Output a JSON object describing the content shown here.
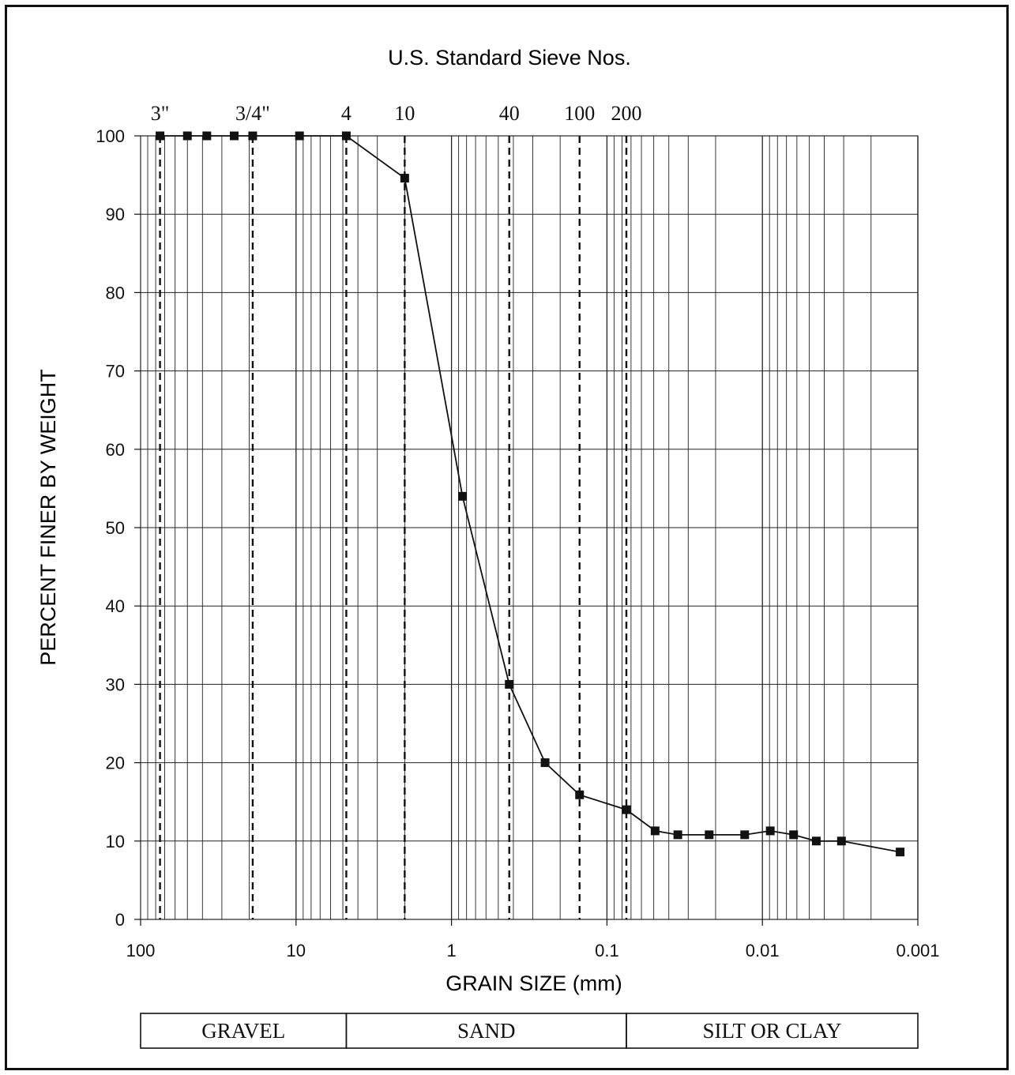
{
  "chart_data": {
    "type": "line",
    "title": "U.S. Standard Sieve Nos.",
    "xlabel": "GRAIN SIZE (mm)",
    "ylabel": "PERCENT FINER BY WEIGHT",
    "x_scale": "log",
    "x_reversed": true,
    "xlim": [
      100,
      0.001
    ],
    "ylim": [
      0,
      100
    ],
    "x_ticks": [
      {
        "value": 100,
        "label": "100"
      },
      {
        "value": 10,
        "label": "10"
      },
      {
        "value": 1,
        "label": "1"
      },
      {
        "value": 0.1,
        "label": "0.1"
      },
      {
        "value": 0.01,
        "label": "0.01"
      },
      {
        "value": 0.001,
        "label": "0.001"
      }
    ],
    "y_ticks": [
      0,
      10,
      20,
      30,
      40,
      50,
      60,
      70,
      80,
      90,
      100
    ],
    "grid": true,
    "sieves": [
      {
        "label": "3\"",
        "size_mm": 75
      },
      {
        "label": "3/4\"",
        "size_mm": 19
      },
      {
        "label": "4",
        "size_mm": 4.75
      },
      {
        "label": "10",
        "size_mm": 2.0
      },
      {
        "label": "40",
        "size_mm": 0.425
      },
      {
        "label": "100",
        "size_mm": 0.15
      },
      {
        "label": "200",
        "size_mm": 0.075
      }
    ],
    "series": [
      {
        "x": [
          75,
          50,
          37.5,
          25,
          19,
          9.5,
          4.75,
          2.0,
          0.85,
          0.425,
          0.25,
          0.15,
          0.075,
          0.049,
          0.035,
          0.022,
          0.013,
          0.0089,
          0.0063,
          0.0045,
          0.0031,
          0.0013
        ],
        "y": [
          100,
          100,
          100,
          100,
          100,
          100,
          100,
          94.6,
          54,
          30,
          20,
          15.9,
          14,
          11.3,
          10.8,
          10.8,
          10.8,
          11.3,
          10.8,
          10,
          10,
          8.6
        ]
      }
    ],
    "soil_classes": [
      {
        "label": "GRAVEL",
        "from_mm": 100,
        "to_mm": 4.75
      },
      {
        "label": "SAND",
        "from_mm": 4.75,
        "to_mm": 0.075
      },
      {
        "label": "SILT OR CLAY",
        "from_mm": 0.075,
        "to_mm": 0.001
      }
    ]
  },
  "colors": {
    "ink": "#111111",
    "grid": "#222222",
    "background": "#ffffff"
  }
}
